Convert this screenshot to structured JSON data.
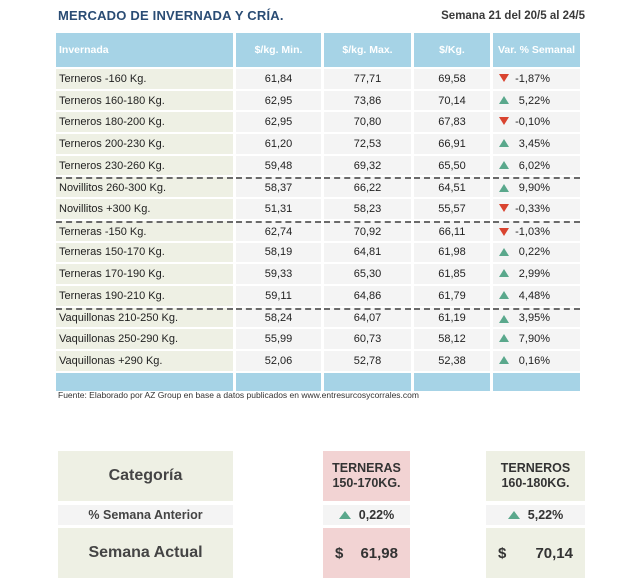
{
  "header": {
    "title": "MERCADO DE INVERNADA Y CRÍA.",
    "week": "Semana 21 del 20/5 al 24/5"
  },
  "table": {
    "columns": [
      "Invernada",
      "$/kg. Min.",
      "$/kg. Max.",
      "$/Kg.",
      "Var. % Semanal"
    ],
    "rows": [
      {
        "cat": "Terneros -160 Kg.",
        "min": "61,84",
        "max": "77,71",
        "avg": "69,58",
        "var": "-1,87%",
        "dir": "down"
      },
      {
        "cat": "Terneros 160-180 Kg.",
        "min": "62,95",
        "max": "73,86",
        "avg": "70,14",
        "var": "5,22%",
        "dir": "up"
      },
      {
        "cat": "Terneros 180-200 Kg.",
        "min": "62,95",
        "max": "70,80",
        "avg": "67,83",
        "var": "-0,10%",
        "dir": "down"
      },
      {
        "cat": "Terneros 200-230 Kg.",
        "min": "61,20",
        "max": "72,53",
        "avg": "66,91",
        "var": "3,45%",
        "dir": "up"
      },
      {
        "cat": "Terneros 230-260 Kg.",
        "min": "59,48",
        "max": "69,32",
        "avg": "65,50",
        "var": "6,02%",
        "dir": "up"
      },
      {
        "cat": "Novillitos 260-300 Kg.",
        "min": "58,37",
        "max": "66,22",
        "avg": "64,51",
        "var": "9,90%",
        "dir": "up",
        "sep": true
      },
      {
        "cat": "Novillitos +300 Kg.",
        "min": "51,31",
        "max": "58,23",
        "avg": "55,57",
        "var": "-0,33%",
        "dir": "down"
      },
      {
        "cat": "Terneras -150 Kg.",
        "min": "62,74",
        "max": "70,92",
        "avg": "66,11",
        "var": "-1,03%",
        "dir": "down",
        "sep": true
      },
      {
        "cat": "Terneras 150-170 Kg.",
        "min": "58,19",
        "max": "64,81",
        "avg": "61,98",
        "var": "0,22%",
        "dir": "up"
      },
      {
        "cat": "Terneras 170-190 Kg.",
        "min": "59,33",
        "max": "65,30",
        "avg": "61,85",
        "var": "2,99%",
        "dir": "up"
      },
      {
        "cat": "Terneras 190-210 Kg.",
        "min": "59,11",
        "max": "64,86",
        "avg": "61,79",
        "var": "4,48%",
        "dir": "up"
      },
      {
        "cat": "Vaquillonas 210-250 Kg.",
        "min": "58,24",
        "max": "64,07",
        "avg": "61,19",
        "var": "3,95%",
        "dir": "up",
        "sep": true
      },
      {
        "cat": "Vaquillonas 250-290 Kg.",
        "min": "55,99",
        "max": "60,73",
        "avg": "58,12",
        "var": "7,90%",
        "dir": "up"
      },
      {
        "cat": "Vaquillonas +290 Kg.",
        "min": "52,06",
        "max": "52,78",
        "avg": "52,38",
        "var": "0,16%",
        "dir": "up"
      }
    ]
  },
  "source": "Fuente: Elaborado por AZ Group en base a datos publicados en www.entresurcosycorrales.com",
  "summary": {
    "category_label": "Categoría",
    "prev_label": "% Semana Anterior",
    "actual_label": "Semana Actual",
    "terneras": {
      "title_line1": "TERNERAS",
      "title_line2": "150-170KG.",
      "prev": "0,22%",
      "currency": "$",
      "price": "61,98"
    },
    "terneros": {
      "title_line1": "TERNEROS",
      "title_line2": "160-180KG.",
      "prev": "5,22%",
      "currency": "$",
      "price": "70,14"
    }
  },
  "colors": {
    "header_blue": "#a6d3e6",
    "up": "#5aa88c",
    "down": "#d9432f",
    "title": "#2a4c74",
    "pink": "#f2d3d3",
    "beige": "#eef0e4"
  }
}
